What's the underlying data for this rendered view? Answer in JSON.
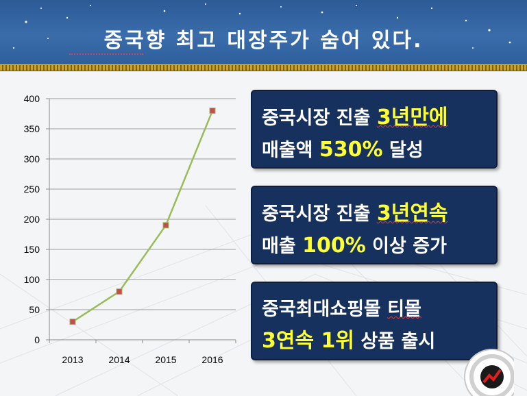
{
  "header": {
    "title": "중국향 최고 대장주가 숨어 있다."
  },
  "chart_data": {
    "type": "line",
    "categories": [
      "2013",
      "2014",
      "2015",
      "2016"
    ],
    "values": [
      30,
      80,
      190,
      380
    ],
    "ylim": [
      0,
      400
    ],
    "yticks": [
      "0",
      "50",
      "100",
      "150",
      "200",
      "250",
      "300",
      "350",
      "400"
    ],
    "grid": true,
    "line_color": "#9bbb59",
    "marker_color": "#c0504d"
  },
  "boxes": [
    {
      "line1_text": "중국시장 진출 ",
      "line1_highlight": "3년만에",
      "line2_text": "매출액 ",
      "line2_highlight": "530%",
      "line2_suffix": " 달성"
    },
    {
      "line1_text": "중국시장 진출 ",
      "line1_highlight": "3년연속",
      "line2_text": "매출 ",
      "line2_highlight": "100%",
      "line2_suffix": " 이상 증가"
    },
    {
      "line1_text": "중국최대쇼핑몰 ",
      "line1_highlight": "티몰",
      "line2_text": "",
      "line2_highlight": "3연속 1위",
      "line2_suffix": " 상품 출시"
    }
  ],
  "colors": {
    "header": "#3a6cab",
    "box": "#17315e",
    "highlight": "#ffff33"
  }
}
